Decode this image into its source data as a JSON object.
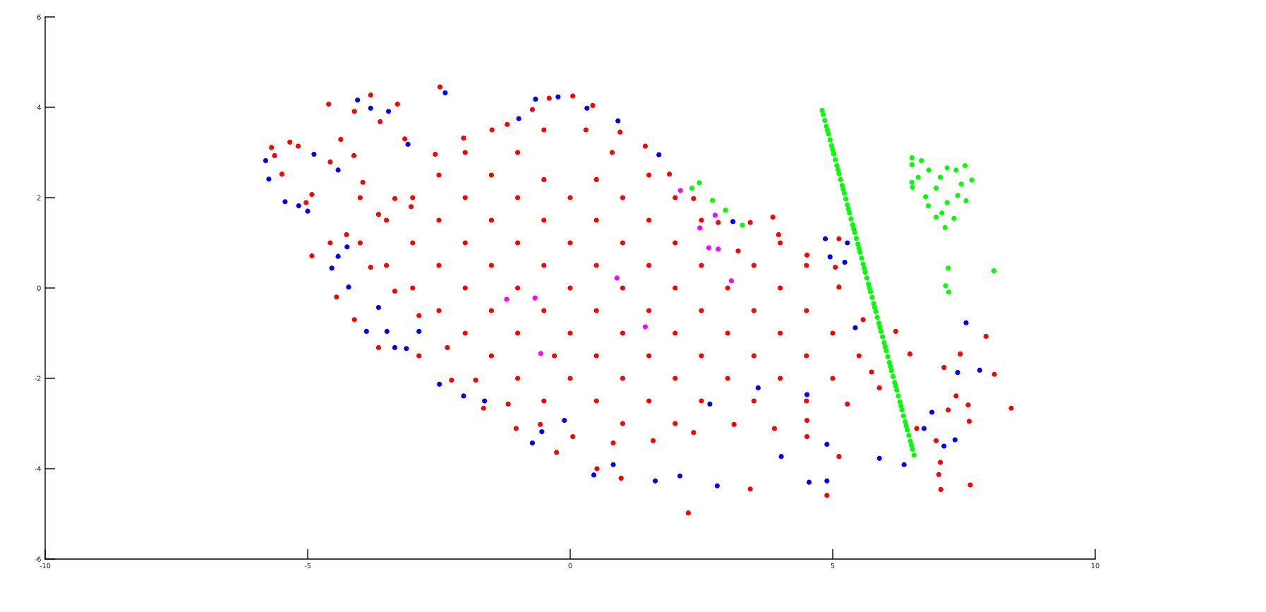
{
  "chart_data": {
    "type": "scatter",
    "marker": "circle",
    "xlim": [
      -10,
      10
    ],
    "ylim": [
      -6,
      6
    ],
    "xticks": [
      -10,
      -5,
      0,
      5,
      10
    ],
    "yticks": [
      -6,
      -4,
      -2,
      0,
      2,
      4,
      6
    ],
    "series": [
      {
        "color": "#ff0000",
        "x": [
          -2.48,
          -4.6,
          -3.8,
          -4.11,
          -5.63,
          -5.69,
          -5.34,
          -4.92,
          -4.57,
          -4.92,
          -4.45,
          -4.11,
          -3.65,
          -2.88,
          -2.26,
          -1.65,
          -1.03,
          -0.26,
          0.51,
          0.97,
          2.25,
          3.43,
          4.89,
          7.06,
          7.62,
          8.4,
          8.08,
          7.92,
          7.43,
          7.05,
          6.2,
          5.74,
          3.86,
          5.05,
          4.51,
          5.12,
          6.6,
          6.97,
          7.35,
          7.58,
          -3.65,
          -3.03,
          -2.57,
          -2.03,
          -1.49,
          -1.2,
          -0.72,
          -0.4,
          0.05,
          0.43,
          0.95,
          1.43,
          1.89,
          2.35,
          2.82,
          3.2,
          3.43,
          3.97,
          4.51,
          5.12,
          5.58,
          6.47,
          -5.18,
          -4.57,
          -3.95,
          -3.34,
          -5.49,
          -5.03,
          -4.26,
          -3.8,
          -3.34,
          -2.88,
          -2.34,
          -1.8,
          -1.18,
          -0.57,
          0.05,
          0.82,
          1.58,
          2.35,
          3.12,
          3.89,
          4.51,
          5.28,
          5.89,
          7.12,
          7.2,
          7.6,
          7.02,
          -3.29,
          -4.37,
          -4.12,
          -3.62,
          -3.15,
          5.12,
          -0.5,
          0.3,
          -2,
          -1,
          0.8,
          -2.5,
          -1.5,
          -0.5,
          0.5,
          1.5,
          -4,
          -3,
          -2,
          -1,
          0,
          1,
          2,
          -3.5,
          -2.5,
          -1.5,
          -0.5,
          0.5,
          1.5,
          2.5,
          -4,
          -3,
          -2,
          -1,
          0,
          1,
          2,
          4,
          -3.5,
          -2.5,
          -1.5,
          -0.5,
          0.5,
          1.5,
          2.5,
          3.5,
          4.5,
          -3,
          -2,
          -1,
          0,
          1,
          2,
          3,
          4,
          -2.5,
          -1.5,
          -0.5,
          0.5,
          1.5,
          2.5,
          3.5,
          4.5,
          -2,
          -1,
          0,
          1,
          2,
          3,
          4,
          5,
          -1.5,
          -0.3,
          0.5,
          1.5,
          2.5,
          3.5,
          4.5,
          5.5,
          -1,
          0,
          1,
          2,
          3,
          4,
          5,
          -0.5,
          0.5,
          1.5,
          2.5,
          3.5,
          4.5,
          1,
          2
        ],
        "values": [
          4.45,
          4.07,
          4.27,
          3.91,
          2.93,
          3.11,
          3.23,
          2.07,
          1.0,
          0.71,
          -0.2,
          -0.7,
          -1.32,
          -1.5,
          -2.04,
          -2.66,
          -3.11,
          -3.64,
          -4.0,
          -4.21,
          -4.98,
          -4.45,
          -4.59,
          -4.46,
          -4.36,
          -2.66,
          -1.91,
          -1.07,
          -1.46,
          -3.86,
          -0.96,
          -1.86,
          1.57,
          0.46,
          -3.29,
          -3.73,
          -3.11,
          -3.38,
          -2.39,
          -2.59,
          1.63,
          1.8,
          2.96,
          3.32,
          3.5,
          3.62,
          3.95,
          4.2,
          4.25,
          4.04,
          3.45,
          3.14,
          2.52,
          1.98,
          1.45,
          0.82,
          1.45,
          1.18,
          0.73,
          0.02,
          -0.7,
          -1.46,
          3.14,
          2.79,
          2.34,
          1.98,
          2.52,
          1.89,
          1.18,
          0.46,
          -0.07,
          -0.61,
          -1.32,
          -2.04,
          -2.57,
          -3.02,
          -3.29,
          -3.43,
          -3.38,
          -3.2,
          -3.02,
          -3.11,
          -2.93,
          -2.57,
          -2.21,
          -1.76,
          -2.7,
          -2.95,
          -4.13,
          4.07,
          3.29,
          2.93,
          3.68,
          3.3,
          1.09,
          3.5,
          3.5,
          3,
          3,
          3,
          2.5,
          2.5,
          2.4,
          2.4,
          2.5,
          2,
          2,
          2,
          2,
          2,
          2,
          2,
          1.5,
          1.5,
          1.5,
          1.5,
          1.5,
          1.5,
          1.5,
          1,
          1,
          1,
          1,
          1,
          1,
          1,
          1,
          0.5,
          0.5,
          0.5,
          0.5,
          0.5,
          0.5,
          0.5,
          0.5,
          0.5,
          0,
          0,
          0,
          0,
          0,
          0,
          0,
          0,
          -0.5,
          -0.5,
          -0.5,
          -0.5,
          -0.5,
          -0.5,
          -0.5,
          -0.5,
          -1,
          -1,
          -1,
          -1,
          -1,
          -1,
          -1,
          -1,
          -1.5,
          -1.5,
          -1.5,
          -1.5,
          -1.5,
          -1.5,
          -1.5,
          -1.5,
          -2,
          -2,
          -2,
          -2,
          -2,
          -2,
          -2,
          -2.5,
          -2.5,
          -2.5,
          -2.5,
          -2.5,
          -2.5,
          -3,
          -3
        ]
      },
      {
        "color": "#0000ff",
        "x": [
          -5.8,
          -5.74,
          -5.43,
          -5.17,
          -5.0,
          -4.05,
          -3.8,
          -3.46,
          -2.38,
          -3.09,
          -4.25,
          -4.42,
          -4.54,
          -4.22,
          -3.65,
          -2.88,
          -3.88,
          -3.49,
          -3.34,
          -3.12,
          -2.49,
          -2.03,
          -1.63,
          -0.54,
          0.45,
          -0.72,
          0.82,
          1.62,
          2.8,
          2.09,
          4.02,
          4.55,
          4.89,
          4.89,
          5.89,
          6.36,
          6.74,
          7.38,
          7.54,
          7.8,
          6.89,
          7.33,
          7.12,
          4.51,
          3.58,
          2.66,
          -0.11,
          5.43,
          -0.66,
          -0.23,
          0.32,
          0.91,
          1.69,
          -0.98,
          3.1,
          4.86,
          5.28,
          5.23,
          4.95,
          -4.88,
          -4.42
        ],
        "values": [
          2.82,
          2.41,
          1.91,
          1.82,
          1.7,
          4.16,
          3.98,
          3.91,
          4.32,
          3.18,
          0.91,
          0.7,
          0.44,
          0.02,
          -0.43,
          -0.96,
          -0.96,
          -0.96,
          -1.32,
          -1.34,
          -2.13,
          -2.39,
          -2.5,
          -3.18,
          -4.14,
          -3.43,
          -3.91,
          -4.27,
          -4.38,
          -4.16,
          -3.73,
          -4.3,
          -4.27,
          -3.46,
          -3.77,
          -3.91,
          -3.11,
          -1.87,
          -0.77,
          -1.82,
          -2.75,
          -3.36,
          -3.5,
          -2.36,
          -2.21,
          -2.57,
          -2.93,
          -0.88,
          4.18,
          4.23,
          3.98,
          3.7,
          2.95,
          3.75,
          1.47,
          1.09,
          1.0,
          0.57,
          0.69,
          2.96,
          2.61
        ]
      },
      {
        "color": "#00ff00",
        "x": [
          4.8,
          4.82,
          4.85,
          4.88,
          4.9,
          4.92,
          4.95,
          4.98,
          5.0,
          5.02,
          5.05,
          5.08,
          5.1,
          5.12,
          5.15,
          5.18,
          5.2,
          5.22,
          5.25,
          5.28,
          5.3,
          5.32,
          5.35,
          5.38,
          5.4,
          5.42,
          5.45,
          5.48,
          5.5,
          5.52,
          5.55,
          5.58,
          5.6,
          5.62,
          5.65,
          5.68,
          5.7,
          5.72,
          5.75,
          5.78,
          5.8,
          5.82,
          5.85,
          5.88,
          5.9,
          5.92,
          5.95,
          5.98,
          6.0,
          6.02,
          6.05,
          6.08,
          6.1,
          6.12,
          6.15,
          6.18,
          6.2,
          6.22,
          6.25,
          6.28,
          6.3,
          6.32,
          6.35,
          6.38,
          6.4,
          6.42,
          6.45,
          6.48,
          6.5,
          6.52,
          6.55,
          6.51,
          6.51,
          6.69,
          6.51,
          6.52,
          7.52,
          7.65,
          7.14,
          6.97,
          7.31,
          6.82,
          7.54,
          7.38,
          7.05,
          6.83,
          7.18,
          7.35,
          6.77,
          7.18,
          7.08,
          6.63,
          6.97,
          7.45,
          7.2,
          7.15,
          7.21,
          8.07,
          2.46,
          2.32,
          2.71,
          2.96,
          3.28
        ],
        "values": [
          3.93,
          3.84,
          3.71,
          3.58,
          3.49,
          3.41,
          3.28,
          3.15,
          3.06,
          2.97,
          2.84,
          2.71,
          2.62,
          2.53,
          2.4,
          2.27,
          2.19,
          2.1,
          1.97,
          1.84,
          1.75,
          1.66,
          1.53,
          1.4,
          1.31,
          1.23,
          1.1,
          0.97,
          0.88,
          0.79,
          0.66,
          0.53,
          0.44,
          0.35,
          0.22,
          0.09,
          0.01,
          -0.08,
          -0.21,
          -0.34,
          -0.43,
          -0.52,
          -0.65,
          -0.78,
          -0.87,
          -0.96,
          -1.08,
          -1.21,
          -1.3,
          -1.39,
          -1.52,
          -1.65,
          -1.74,
          -1.83,
          -1.96,
          -2.09,
          -2.17,
          -2.26,
          -2.39,
          -2.52,
          -2.61,
          -2.7,
          -2.83,
          -2.96,
          -3.05,
          -3.14,
          -3.26,
          -3.39,
          -3.48,
          -3.57,
          -3.7,
          2.88,
          2.73,
          2.82,
          2.34,
          2.23,
          2.71,
          2.39,
          1.34,
          1.57,
          1.54,
          1.82,
          1.93,
          2.05,
          2.45,
          2.61,
          2.66,
          2.61,
          2.02,
          1.89,
          1.66,
          2.45,
          2.21,
          2.3,
          0.44,
          0.05,
          -0.09,
          0.38,
          2.33,
          2.21,
          1.94,
          1.72,
          1.39
        ]
      },
      {
        "color": "#ff00ff",
        "x": [
          -1.21,
          -0.67,
          0.89,
          -0.56,
          1.43,
          2.1,
          2.76,
          2.47,
          2.64,
          2.82,
          3.07
        ],
        "values": [
          -0.25,
          -0.22,
          0.22,
          -1.45,
          -0.86,
          2.16,
          1.61,
          1.33,
          0.89,
          0.86,
          0.16
        ]
      }
    ]
  }
}
